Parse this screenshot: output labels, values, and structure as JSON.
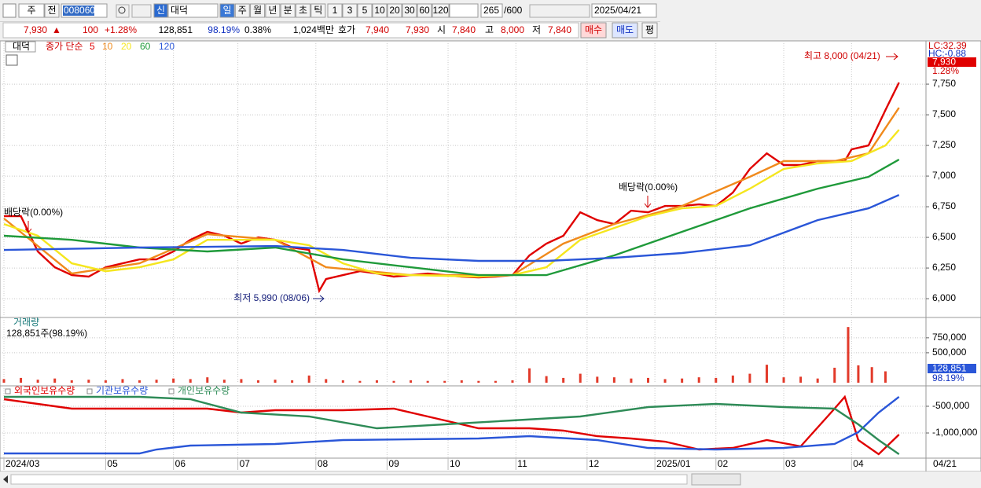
{
  "toolbar": {
    "market": "주",
    "prev": "전",
    "code": "008060",
    "new_badge": "신",
    "name": "대덕",
    "periods": [
      "일",
      "주",
      "월",
      "년",
      "분",
      "초",
      "틱"
    ],
    "intervals": [
      "1",
      "3",
      "5",
      "10",
      "20",
      "30",
      "60",
      "120"
    ],
    "count": "265",
    "max_count": "/600",
    "date": "2025/04/21"
  },
  "quote": {
    "price": "7,930",
    "arrow": "▲",
    "change": "100",
    "change_pct": "+1.28%",
    "volume": "128,851",
    "vol_ratio": "98.19%",
    "turnover": "0.38%",
    "amount": "1,024백만",
    "ask_label": "호가",
    "ask": "7,940",
    "bid": "7,930",
    "open_label": "시",
    "open": "7,840",
    "high_label": "고",
    "high": "8,000",
    "low_label": "저",
    "low": "7,840",
    "buy": "매수",
    "sell": "매도",
    "avg": "평"
  },
  "chart_data": [
    {
      "type": "line",
      "title": "대덕",
      "legend_title": "종가 단순",
      "ylim": [
        5853,
        8103
      ],
      "yticks": [
        {
          "value": 6000,
          "label": "6,000"
        },
        {
          "value": 6250,
          "label": "6,250"
        },
        {
          "value": 6500,
          "label": "6,500"
        },
        {
          "value": 6750,
          "label": "6,750"
        },
        {
          "value": 7000,
          "label": "7,000"
        },
        {
          "value": 7250,
          "label": "7,250"
        },
        {
          "value": 7500,
          "label": "7,500"
        },
        {
          "value": 7750,
          "label": "7,750"
        }
      ],
      "grid": true,
      "series": [
        {
          "name": "5",
          "color": "#e00000",
          "x": [
            0,
            5,
            10,
            15,
            20,
            25,
            30,
            35,
            40,
            45,
            50,
            55,
            60,
            65,
            70,
            75,
            80,
            85,
            90,
            93,
            95,
            100,
            105,
            110,
            115,
            120,
            125,
            130,
            135,
            140,
            145,
            150,
            155,
            160,
            165,
            170,
            175,
            180,
            185,
            190,
            195,
            200,
            205,
            210,
            215,
            220,
            225,
            230,
            235,
            240,
            245,
            248,
            250,
            255,
            260,
            264
          ],
          "values": [
            6673,
            6673,
            6385,
            6256,
            6192,
            6180,
            6256,
            6288,
            6320,
            6320,
            6385,
            6480,
            6545,
            6513,
            6449,
            6500,
            6480,
            6417,
            6397,
            6064,
            6160,
            6192,
            6224,
            6205,
            6180,
            6192,
            6205,
            6192,
            6180,
            6173,
            6180,
            6192,
            6353,
            6449,
            6513,
            6705,
            6641,
            6609,
            6718,
            6705,
            6756,
            6756,
            6769,
            6756,
            6865,
            7058,
            7186,
            7090,
            7090,
            7122,
            7122,
            7122,
            7218,
            7250,
            7538,
            7763
          ]
        },
        {
          "name": "10",
          "color": "#f08a1c",
          "x": [
            0,
            20,
            40,
            60,
            80,
            95,
            120,
            150,
            165,
            180,
            200,
            220,
            230,
            245,
            255,
            264
          ],
          "values": [
            6654,
            6205,
            6288,
            6526,
            6480,
            6256,
            6192,
            6192,
            6449,
            6609,
            6756,
            6994,
            7122,
            7122,
            7186,
            7558
          ]
        },
        {
          "name": "20",
          "color": "#f5e61e",
          "x": [
            0,
            10,
            20,
            30,
            40,
            50,
            60,
            70,
            80,
            90,
            100,
            110,
            120,
            140,
            150,
            160,
            170,
            180,
            190,
            200,
            210,
            220,
            230,
            240,
            250,
            260,
            264
          ],
          "values": [
            6609,
            6513,
            6288,
            6224,
            6256,
            6320,
            6480,
            6480,
            6480,
            6436,
            6288,
            6205,
            6192,
            6180,
            6192,
            6256,
            6480,
            6577,
            6673,
            6737,
            6756,
            6897,
            7058,
            7103,
            7122,
            7250,
            7378
          ]
        },
        {
          "name": "60",
          "color": "#1f9a3a",
          "x": [
            0,
            20,
            40,
            60,
            80,
            100,
            120,
            140,
            160,
            180,
            200,
            220,
            240,
            255,
            264
          ],
          "values": [
            6513,
            6480,
            6417,
            6385,
            6417,
            6320,
            6256,
            6192,
            6192,
            6353,
            6545,
            6737,
            6897,
            6994,
            7135
          ]
        },
        {
          "name": "120",
          "color": "#2a56d8",
          "x": [
            0,
            40,
            80,
            100,
            120,
            140,
            160,
            180,
            200,
            220,
            240,
            255,
            264
          ],
          "values": [
            6397,
            6417,
            6429,
            6397,
            6333,
            6308,
            6308,
            6333,
            6372,
            6436,
            6641,
            6737,
            6846
          ]
        }
      ],
      "annotations": [
        "최고 8,000 (04/21)",
        "최저 5,990 (08/06)",
        "배당락(0.00%)",
        "배당락(0.00%)"
      ],
      "side_labels": {
        "lc": "LC:32.39",
        "hc": "HC:-0.88",
        "last": "7,930",
        "last_pct": "1.28%"
      }
    },
    {
      "type": "bar",
      "title": "거래량",
      "subtitle": "128,851주(98.19%)",
      "color": "#e23a2a",
      "ylim": [
        0,
        1050000
      ],
      "yticks": [
        {
          "value": 500000,
          "label": "500,000"
        },
        {
          "value": 750000,
          "label": "750,000"
        }
      ],
      "grid": true,
      "x": [
        0,
        5,
        10,
        15,
        20,
        25,
        30,
        35,
        40,
        45,
        50,
        55,
        60,
        65,
        70,
        75,
        80,
        85,
        90,
        95,
        100,
        105,
        110,
        115,
        120,
        125,
        130,
        135,
        140,
        145,
        150,
        155,
        160,
        165,
        170,
        175,
        180,
        185,
        190,
        195,
        200,
        205,
        210,
        215,
        220,
        225,
        230,
        235,
        240,
        245,
        249,
        252,
        256,
        260
      ],
      "values": [
        60000,
        80000,
        50000,
        70000,
        40000,
        50000,
        40000,
        60000,
        40000,
        50000,
        70000,
        60000,
        90000,
        50000,
        60000,
        40000,
        50000,
        40000,
        120000,
        60000,
        40000,
        30000,
        40000,
        30000,
        40000,
        30000,
        30000,
        40000,
        30000,
        30000,
        40000,
        240000,
        110000,
        80000,
        150000,
        100000,
        90000,
        70000,
        80000,
        60000,
        70000,
        90000,
        80000,
        120000,
        150000,
        300000,
        90000,
        100000,
        70000,
        250000,
        930000,
        290000,
        260000,
        190000
      ],
      "side_labels": {
        "last": "128,851",
        "last_pct": "98.19%"
      }
    },
    {
      "type": "line",
      "ylim": [
        -1456000,
        -162000
      ],
      "yticks": [
        {
          "value": -500000,
          "label": "-500,000"
        },
        {
          "value": -1000000,
          "label": "-1,000,000"
        }
      ],
      "grid": true,
      "xlim": [
        0,
        265
      ],
      "xticks": [
        {
          "value": 0,
          "label": "2024/03"
        },
        {
          "value": 30,
          "label": "05"
        },
        {
          "value": 50,
          "label": "06"
        },
        {
          "value": 69,
          "label": "07"
        },
        {
          "value": 92,
          "label": "08"
        },
        {
          "value": 113,
          "label": "09"
        },
        {
          "value": 131,
          "label": "10"
        },
        {
          "value": 151,
          "label": "11"
        },
        {
          "value": 172,
          "label": "12"
        },
        {
          "value": 192,
          "label": "2025/01"
        },
        {
          "value": 210,
          "label": "02"
        },
        {
          "value": 230,
          "label": "03"
        },
        {
          "value": 250,
          "label": "04"
        }
      ],
      "x_end_label": "04/21",
      "series": [
        {
          "name": "외국인보유수량",
          "color": "#e00000",
          "x": [
            0,
            20,
            40,
            60,
            70,
            80,
            100,
            115,
            130,
            140,
            155,
            165,
            175,
            185,
            195,
            205,
            215,
            225,
            235,
            245,
            248,
            252,
            258,
            264
          ],
          "values": [
            -368000,
            -544000,
            -544000,
            -544000,
            -618000,
            -574000,
            -574000,
            -544000,
            -765000,
            -912000,
            -912000,
            -956000,
            -1059000,
            -1103000,
            -1162000,
            -1309000,
            -1279000,
            -1132000,
            -1250000,
            -544000,
            -324000,
            -1132000,
            -1397000,
            -1029000
          ]
        },
        {
          "name": "기관보유수량",
          "color": "#2a56d8",
          "x": [
            0,
            40,
            45,
            55,
            80,
            100,
            140,
            155,
            175,
            190,
            210,
            230,
            245,
            252,
            258,
            264
          ],
          "values": [
            -1382000,
            -1382000,
            -1309000,
            -1235000,
            -1206000,
            -1132000,
            -1103000,
            -1059000,
            -1132000,
            -1279000,
            -1309000,
            -1279000,
            -1206000,
            -985000,
            -618000,
            -324000
          ]
        },
        {
          "name": "개인보유수량",
          "color": "#2e8b57",
          "x": [
            0,
            40,
            55,
            70,
            90,
            110,
            130,
            150,
            170,
            190,
            210,
            230,
            245,
            252,
            258,
            264
          ],
          "values": [
            -324000,
            -324000,
            -368000,
            -618000,
            -691000,
            -912000,
            -838000,
            -765000,
            -691000,
            -515000,
            -456000,
            -515000,
            -544000,
            -838000,
            -1132000,
            -1397000
          ]
        }
      ]
    }
  ]
}
